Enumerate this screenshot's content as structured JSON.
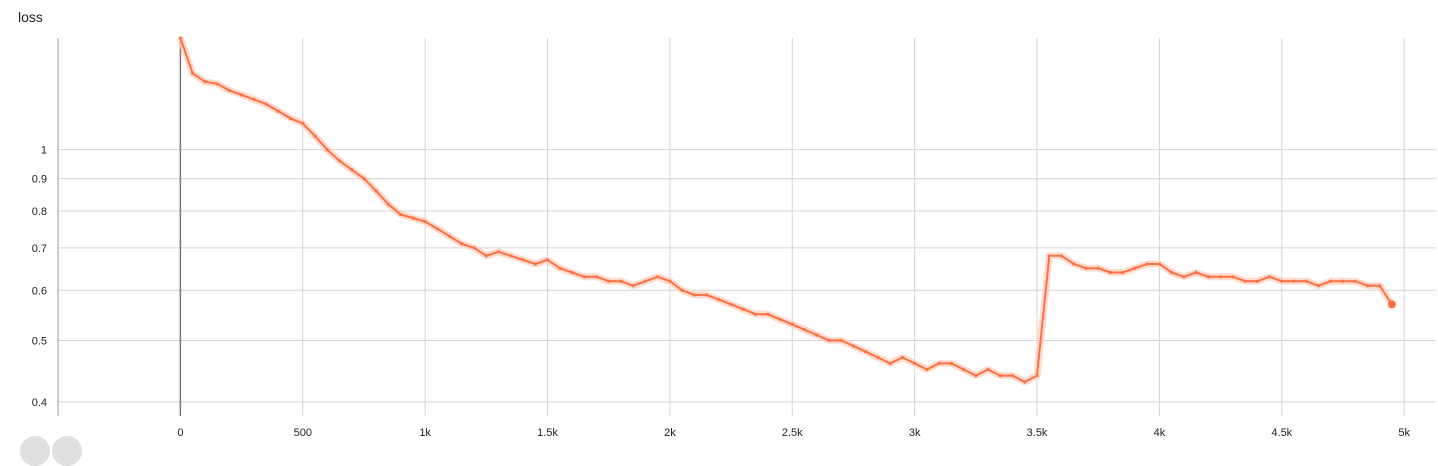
{
  "chart_data": {
    "type": "line",
    "title": "loss",
    "xlabel": "",
    "ylabel": "",
    "x_ticks": [
      {
        "value": 0,
        "label": "0"
      },
      {
        "value": 500,
        "label": "500"
      },
      {
        "value": 1000,
        "label": "1k"
      },
      {
        "value": 1500,
        "label": "1.5k"
      },
      {
        "value": 2000,
        "label": "2k"
      },
      {
        "value": 2500,
        "label": "2.5k"
      },
      {
        "value": 3000,
        "label": "3k"
      },
      {
        "value": 3500,
        "label": "3.5k"
      },
      {
        "value": 4000,
        "label": "4k"
      },
      {
        "value": 4500,
        "label": "4.5k"
      },
      {
        "value": 5000,
        "label": "5k"
      }
    ],
    "y_ticks": [
      {
        "value": 0.4,
        "label": "0.4"
      },
      {
        "value": 0.5,
        "label": "0.5"
      },
      {
        "value": 0.6,
        "label": "0.6"
      },
      {
        "value": 0.7,
        "label": "0.7"
      },
      {
        "value": 0.8,
        "label": "0.8"
      },
      {
        "value": 0.9,
        "label": "0.9"
      },
      {
        "value": 1,
        "label": "1"
      }
    ],
    "y_scale": "log",
    "xlim": [
      -500,
      5130
    ],
    "ylim": [
      0.38,
      1.5
    ],
    "grid": true,
    "colors": {
      "smoothed": "#ff7043",
      "raw": "#ffccbc",
      "grid": "#d4d4d4",
      "axis": "#9e9e9e"
    },
    "series": [
      {
        "role": "smoothed",
        "x": [
          0,
          50,
          100,
          150,
          200,
          250,
          300,
          350,
          400,
          450,
          500,
          550,
          600,
          650,
          700,
          750,
          800,
          850,
          900,
          950,
          1000,
          1050,
          1100,
          1150,
          1200,
          1250,
          1300,
          1350,
          1400,
          1450,
          1500,
          1550,
          1600,
          1650,
          1700,
          1750,
          1800,
          1850,
          1900,
          1950,
          2000,
          2050,
          2100,
          2150,
          2200,
          2250,
          2300,
          2350,
          2400,
          2450,
          2500,
          2550,
          2600,
          2650,
          2700,
          2750,
          2800,
          2850,
          2900,
          2950,
          3000,
          3050,
          3100,
          3150,
          3200,
          3250,
          3300,
          3350,
          3400,
          3450,
          3500,
          3550,
          3600,
          3650,
          3700,
          3750,
          3800,
          3850,
          3900,
          3950,
          4000,
          4050,
          4100,
          4150,
          4200,
          4250,
          4300,
          4350,
          4400,
          4450,
          4500,
          4550,
          4600,
          4650,
          4700,
          4750,
          4800,
          4850,
          4900,
          4950
        ],
        "y": [
          1.5,
          1.32,
          1.28,
          1.27,
          1.24,
          1.22,
          1.2,
          1.18,
          1.15,
          1.12,
          1.1,
          1.05,
          1.0,
          0.96,
          0.93,
          0.9,
          0.86,
          0.82,
          0.79,
          0.78,
          0.77,
          0.75,
          0.73,
          0.71,
          0.7,
          0.68,
          0.69,
          0.68,
          0.67,
          0.66,
          0.67,
          0.65,
          0.64,
          0.63,
          0.63,
          0.62,
          0.62,
          0.61,
          0.62,
          0.63,
          0.62,
          0.6,
          0.59,
          0.59,
          0.58,
          0.57,
          0.56,
          0.55,
          0.55,
          0.54,
          0.53,
          0.52,
          0.51,
          0.5,
          0.5,
          0.49,
          0.48,
          0.47,
          0.46,
          0.47,
          0.46,
          0.45,
          0.46,
          0.46,
          0.45,
          0.44,
          0.45,
          0.44,
          0.44,
          0.43,
          0.44,
          0.68,
          0.68,
          0.66,
          0.65,
          0.65,
          0.64,
          0.64,
          0.65,
          0.66,
          0.66,
          0.64,
          0.63,
          0.64,
          0.63,
          0.63,
          0.63,
          0.62,
          0.62,
          0.63,
          0.62,
          0.62,
          0.62,
          0.61,
          0.62,
          0.62,
          0.62,
          0.61,
          0.61,
          0.57
        ]
      }
    ]
  }
}
